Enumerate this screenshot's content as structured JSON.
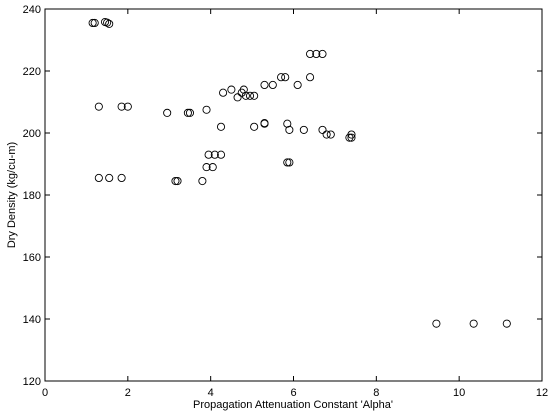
{
  "chart_data": {
    "type": "scatter",
    "title": "",
    "xlabel": "Propagation Attenuation Constant 'Alpha'",
    "ylabel": "Dry Density (kg/cu-m)",
    "xlim": [
      0,
      12
    ],
    "ylim": [
      120,
      240
    ],
    "xticks": [
      "0",
      "2",
      "4",
      "6",
      "8",
      "10",
      "12"
    ],
    "yticks": [
      "120",
      "140",
      "160",
      "180",
      "200",
      "220",
      "240"
    ],
    "grid": false,
    "marker": "open-circle",
    "series": [
      {
        "name": "",
        "points": [
          [
            1.15,
            235.5
          ],
          [
            1.2,
            235.5
          ],
          [
            1.45,
            235.8
          ],
          [
            1.5,
            235.6
          ],
          [
            1.55,
            235.2
          ],
          [
            1.3,
            208.5
          ],
          [
            1.85,
            208.5
          ],
          [
            2.0,
            208.5
          ],
          [
            1.3,
            185.5
          ],
          [
            1.55,
            185.5
          ],
          [
            1.85,
            185.5
          ],
          [
            2.95,
            206.5
          ],
          [
            3.45,
            206.5
          ],
          [
            3.5,
            206.5
          ],
          [
            3.9,
            207.5
          ],
          [
            3.15,
            184.5
          ],
          [
            3.2,
            184.5
          ],
          [
            3.8,
            184.5
          ],
          [
            3.9,
            189.0
          ],
          [
            4.05,
            189.0
          ],
          [
            3.95,
            193.0
          ],
          [
            4.1,
            193.0
          ],
          [
            4.25,
            193.0
          ],
          [
            4.25,
            202.0
          ],
          [
            4.3,
            213.0
          ],
          [
            4.5,
            214.0
          ],
          [
            4.65,
            211.5
          ],
          [
            4.75,
            213.0
          ],
          [
            4.8,
            214.0
          ],
          [
            4.85,
            212.0
          ],
          [
            4.95,
            212.0
          ],
          [
            5.05,
            212.0
          ],
          [
            5.05,
            202.0
          ],
          [
            5.3,
            203.0
          ],
          [
            5.3,
            203.2
          ],
          [
            5.3,
            215.5
          ],
          [
            5.5,
            215.5
          ],
          [
            5.7,
            218.0
          ],
          [
            5.8,
            218.0
          ],
          [
            5.85,
            190.5
          ],
          [
            5.9,
            190.5
          ],
          [
            5.85,
            203.0
          ],
          [
            5.9,
            201.0
          ],
          [
            6.1,
            215.5
          ],
          [
            6.25,
            201.0
          ],
          [
            6.4,
            225.5
          ],
          [
            6.4,
            218.0
          ],
          [
            6.55,
            225.5
          ],
          [
            6.7,
            225.5
          ],
          [
            6.7,
            201.0
          ],
          [
            6.8,
            199.5
          ],
          [
            6.9,
            199.5
          ],
          [
            7.35,
            198.5
          ],
          [
            7.4,
            198.5
          ],
          [
            7.4,
            199.5
          ],
          [
            9.45,
            138.5
          ],
          [
            10.35,
            138.5
          ],
          [
            11.15,
            138.5
          ]
        ]
      }
    ]
  }
}
